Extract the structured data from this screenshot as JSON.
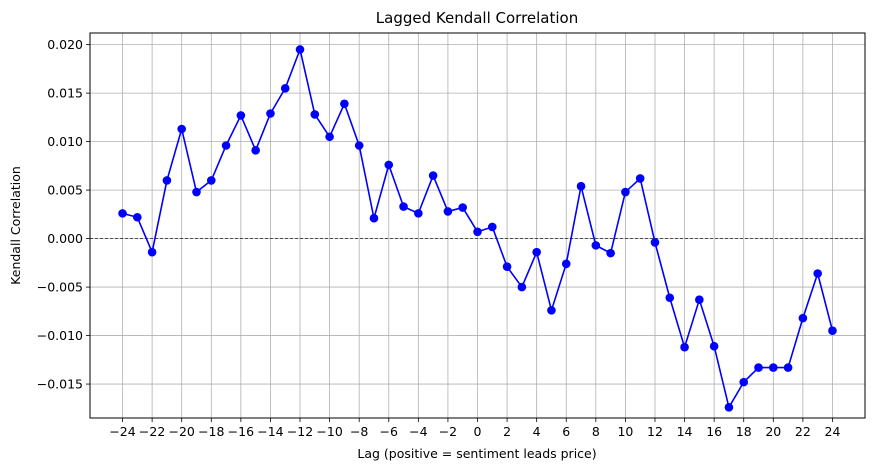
{
  "chart_data": {
    "type": "line",
    "title": "Lagged Kendall Correlation",
    "xlabel": "Lag (positive = sentiment leads price)",
    "ylabel": "Kendall Correlation",
    "xlim": [
      -26.2,
      26.2
    ],
    "ylim": [
      -0.0185,
      0.0212
    ],
    "xticks": [
      -24,
      -22,
      -20,
      -18,
      -16,
      -14,
      -12,
      -10,
      -8,
      -6,
      -4,
      -2,
      0,
      2,
      4,
      6,
      8,
      10,
      12,
      14,
      16,
      18,
      20,
      22,
      24
    ],
    "xtick_labels": [
      "−24",
      "−22",
      "−20",
      "−18",
      "−16",
      "−14",
      "−12",
      "−10",
      "−8",
      "−6",
      "−4",
      "−2",
      "0",
      "2",
      "4",
      "6",
      "8",
      "10",
      "12",
      "14",
      "16",
      "18",
      "20",
      "22",
      "24"
    ],
    "yticks": [
      -0.015,
      -0.01,
      -0.005,
      0.0,
      0.005,
      0.01,
      0.015,
      0.02
    ],
    "ytick_labels": [
      "−0.015",
      "−0.010",
      "−0.005",
      "0.000",
      "0.005",
      "0.010",
      "0.015",
      "0.020"
    ],
    "grid": true,
    "reference_line_y": 0,
    "series_color": "#0000ff",
    "x": [
      -24,
      -23,
      -22,
      -21,
      -20,
      -19,
      -18,
      -17,
      -16,
      -15,
      -14,
      -13,
      -12,
      -11,
      -10,
      -9,
      -8,
      -7,
      -6,
      -5,
      -4,
      -3,
      -2,
      -1,
      0,
      1,
      2,
      3,
      4,
      5,
      6,
      7,
      8,
      9,
      10,
      11,
      12,
      13,
      14,
      15,
      16,
      17,
      18,
      19,
      20,
      21,
      22,
      23,
      24
    ],
    "values": [
      0.0026,
      0.0022,
      -0.0014,
      0.006,
      0.0113,
      0.0048,
      0.006,
      0.0096,
      0.0127,
      0.0091,
      0.0129,
      0.0155,
      0.0195,
      0.0128,
      0.0105,
      0.0139,
      0.0096,
      0.0021,
      0.0076,
      0.0033,
      0.0026,
      0.0065,
      0.0028,
      0.0032,
      0.0007,
      0.0012,
      -0.0029,
      -0.005,
      -0.0014,
      -0.0074,
      -0.0026,
      0.0054,
      -0.0007,
      -0.0015,
      0.0048,
      0.0062,
      -0.0004,
      -0.0061,
      -0.0112,
      -0.0063,
      -0.0111,
      -0.0174,
      -0.0148,
      -0.0133,
      -0.0133,
      -0.0133,
      -0.0082,
      -0.0036,
      -0.0095
    ]
  }
}
